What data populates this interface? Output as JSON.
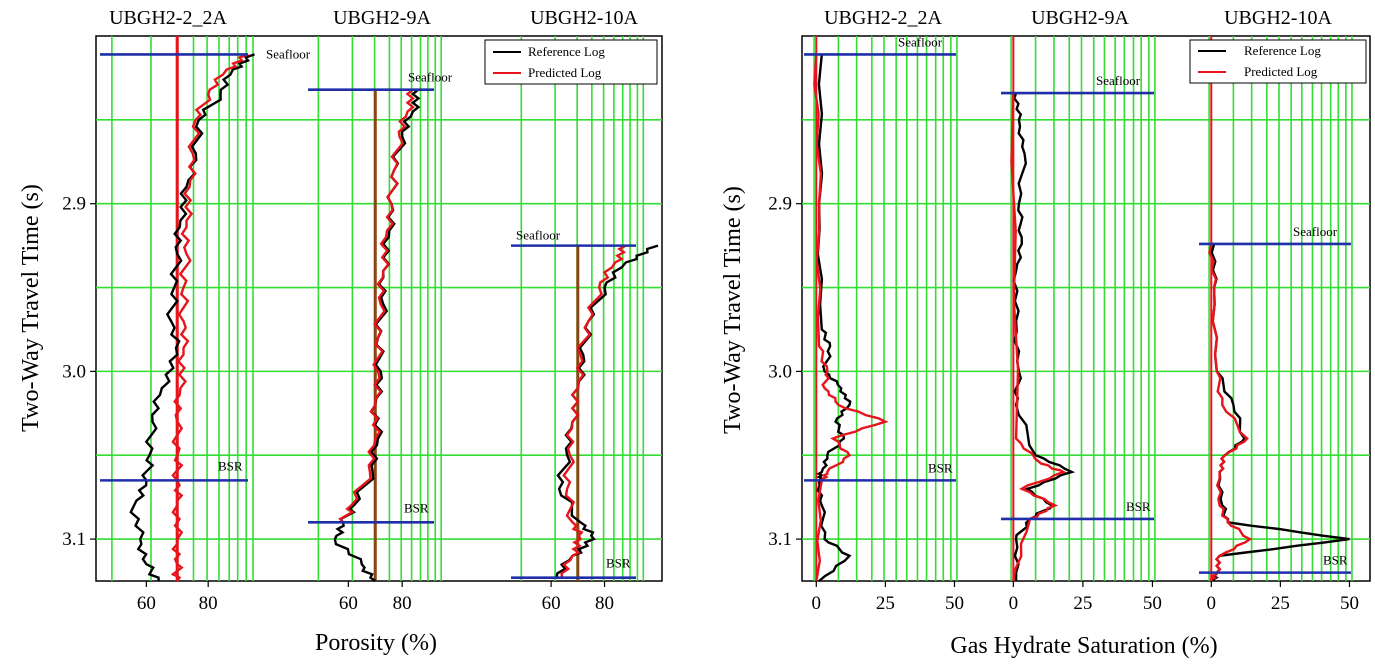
{
  "colors": {
    "grid": "#33dd33",
    "reference": "#000000",
    "predicted": "#e8141c",
    "marker": "#1f2fa8",
    "baseline_porosity": "#8b4513"
  },
  "chart_data": [
    {
      "type": "line",
      "title": "",
      "xlabel": "Porosity (%)",
      "ylabel": "Two-Way Travel Time (s)",
      "y_inverted": true,
      "ylim": [
        2.8,
        3.125
      ],
      "y_ticks": [
        2.9,
        3.0,
        3.1
      ],
      "y_tick_labels": [
        "2.9",
        "3.0",
        "3.1"
      ],
      "grid": true,
      "legend": {
        "placement": "top-right",
        "entries": [
          "Reference Log",
          "Predicted Log"
        ]
      },
      "tracks": [
        {
          "title": "UBGH2-2_2A",
          "xlim": [
            45,
            100
          ],
          "x_ticks": [
            60,
            80
          ],
          "x_tick_labels": [
            "60",
            "80"
          ],
          "baseline": 70,
          "seafloor": {
            "label": "Seafloor",
            "twt": 2.811
          },
          "bsr": {
            "label": "BSR",
            "twt": 3.065
          },
          "series": [
            {
              "name": "Reference Log",
              "twt": [
                2.811,
                2.82,
                2.835,
                2.85,
                2.87,
                2.89,
                2.91,
                2.93,
                2.95,
                2.97,
                2.99,
                3.01,
                3.03,
                3.05,
                3.065,
                3.08,
                3.1,
                3.115,
                3.125
              ],
              "values": [
                95,
                88,
                84,
                77,
                76,
                73,
                71,
                70,
                69,
                68,
                70,
                65,
                62,
                61,
                60,
                56,
                58,
                60,
                64
              ]
            },
            {
              "name": "Predicted Log",
              "twt": [
                2.811,
                2.82,
                2.835,
                2.85,
                2.87,
                2.89,
                2.91,
                2.93,
                2.95,
                2.97,
                2.99,
                3.01,
                3.03,
                3.05,
                3.065,
                3.08,
                3.1,
                3.115,
                3.125
              ],
              "values": [
                93,
                86,
                80,
                76,
                75,
                74,
                73,
                73,
                72,
                72,
                72,
                71,
                70,
                70,
                70,
                70,
                70,
                70,
                70
              ]
            }
          ]
        },
        {
          "title": "UBGH2-9A",
          "xlim": [
            45,
            100
          ],
          "x_ticks": [
            60,
            80
          ],
          "x_tick_labels": [
            "60",
            "80"
          ],
          "baseline": 70,
          "seafloor": {
            "label": "Seafloor",
            "twt": 2.832
          },
          "bsr": {
            "label": "BSR",
            "twt": 3.09
          },
          "series": [
            {
              "name": "Reference Log",
              "twt": [
                2.832,
                2.845,
                2.86,
                2.88,
                2.9,
                2.92,
                2.94,
                2.96,
                2.98,
                3.0,
                3.02,
                3.04,
                3.06,
                3.08,
                3.09,
                3.1,
                3.115,
                3.125
              ],
              "values": [
                86,
                84,
                80,
                77,
                76,
                75,
                73,
                73,
                71,
                72,
                70,
                71,
                69,
                62,
                58,
                55,
                65,
                70
              ]
            },
            {
              "name": "Predicted Log",
              "twt": [
                2.832,
                2.845,
                2.86,
                2.88,
                2.9,
                2.92,
                2.94,
                2.96,
                2.98,
                3.0,
                3.02,
                3.04,
                3.06,
                3.08,
                3.09
              ],
              "values": [
                84,
                82,
                79,
                77,
                76,
                74,
                73,
                72,
                71,
                71,
                70,
                70,
                68,
                61,
                58
              ]
            }
          ]
        },
        {
          "title": "UBGH2-10A",
          "xlim": [
            45,
            100
          ],
          "x_ticks": [
            60,
            80
          ],
          "x_tick_labels": [
            "60",
            "80"
          ],
          "baseline": 70,
          "seafloor": {
            "label": "Seafloor",
            "twt": 2.925
          },
          "bsr": {
            "label": "BSR",
            "twt": 3.123
          },
          "series": [
            {
              "name": "Reference Log",
              "twt": [
                2.925,
                2.935,
                2.95,
                2.97,
                2.99,
                3.01,
                3.03,
                3.05,
                3.07,
                3.09,
                3.1,
                3.11,
                3.123
              ],
              "values": [
                100,
                88,
                80,
                74,
                72,
                70,
                68,
                66,
                63,
                71,
                76,
                68,
                62
              ]
            },
            {
              "name": "Predicted Log",
              "twt": [
                2.925,
                2.935,
                2.95,
                2.97,
                2.99,
                3.01,
                3.03,
                3.05,
                3.07,
                3.09,
                3.1,
                3.11,
                3.123
              ],
              "values": [
                88,
                84,
                78,
                74,
                71,
                70,
                68,
                67,
                66,
                68,
                71,
                68,
                64
              ]
            }
          ]
        }
      ]
    },
    {
      "type": "line",
      "title": "",
      "xlabel": "Gas Hydrate Saturation (%)",
      "ylabel": "Two-Way Travel Time (s)",
      "y_inverted": true,
      "ylim": [
        2.8,
        3.125
      ],
      "y_ticks": [
        2.9,
        3.0,
        3.1
      ],
      "y_tick_labels": [
        "2.9",
        "3.0",
        "3.1"
      ],
      "grid": true,
      "legend": {
        "placement": "top-right",
        "entries": [
          "Reference Log",
          "Predicted Log"
        ]
      },
      "tracks": [
        {
          "title": "UBGH2-2_2A",
          "xlim": [
            -3,
            52
          ],
          "x_ticks": [
            0,
            25,
            50
          ],
          "x_tick_labels": [
            "0",
            "25",
            "50"
          ],
          "baseline": 0,
          "seafloor": {
            "label": "Seafloor",
            "twt": 2.811
          },
          "bsr": {
            "label": "BSR",
            "twt": 3.065
          },
          "series": [
            {
              "name": "Reference Log",
              "twt": [
                2.811,
                2.9,
                2.975,
                2.985,
                3.0,
                3.01,
                3.02,
                3.03,
                3.04,
                3.05,
                3.06,
                3.065,
                3.08,
                3.1,
                3.11,
                3.125
              ],
              "values": [
                2,
                1,
                2,
                5,
                3,
                9,
                12,
                7,
                10,
                4,
                2,
                1,
                2,
                3,
                12,
                1
              ]
            },
            {
              "name": "Predicted Log",
              "twt": [
                2.811,
                2.9,
                2.985,
                3.0,
                3.01,
                3.02,
                3.03,
                3.04,
                3.05,
                3.06,
                3.065,
                3.125
              ],
              "values": [
                0,
                1,
                1,
                4,
                3,
                8,
                25,
                6,
                12,
                4,
                2,
                0
              ]
            }
          ]
        },
        {
          "title": "UBGH2-9A",
          "xlim": [
            -3,
            52
          ],
          "x_ticks": [
            0,
            25,
            50
          ],
          "x_tick_labels": [
            "0",
            "25",
            "50"
          ],
          "baseline": 0,
          "seafloor": {
            "label": "Seafloor",
            "twt": 2.834
          },
          "bsr": {
            "label": "BSR",
            "twt": 3.088
          },
          "series": [
            {
              "name": "Reference Log",
              "twt": [
                2.834,
                2.85,
                2.87,
                2.9,
                2.92,
                2.94,
                2.97,
                3.0,
                3.02,
                3.05,
                3.06,
                3.07,
                3.08,
                3.088,
                3.1,
                3.125
              ],
              "values": [
                1,
                2,
                4,
                2,
                3,
                1,
                1,
                2,
                1,
                8,
                21,
                5,
                14,
                6,
                1,
                1
              ]
            },
            {
              "name": "Predicted Log",
              "twt": [
                2.834,
                3.04,
                3.055,
                3.06,
                3.07,
                3.08,
                3.088,
                3.125
              ],
              "values": [
                0,
                1,
                10,
                18,
                3,
                15,
                6,
                0
              ]
            }
          ]
        },
        {
          "title": "UBGH2-10A",
          "xlim": [
            -3,
            52
          ],
          "x_ticks": [
            0,
            25,
            50
          ],
          "x_tick_labels": [
            "0",
            "25",
            "50"
          ],
          "baseline": 0,
          "seafloor": {
            "label": "Seafloor",
            "twt": 2.924
          },
          "bsr": {
            "label": "BSR",
            "twt": 3.12
          },
          "series": [
            {
              "name": "Reference Log",
              "twt": [
                2.924,
                2.95,
                3.0,
                3.02,
                3.04,
                3.05,
                3.06,
                3.08,
                3.09,
                3.1,
                3.11,
                3.12,
                3.125
              ],
              "values": [
                1,
                1,
                2,
                8,
                12,
                5,
                3,
                4,
                6,
                50,
                3,
                2,
                1
              ]
            },
            {
              "name": "Predicted Log",
              "twt": [
                2.924,
                2.95,
                3.0,
                3.02,
                3.04,
                3.05,
                3.06,
                3.08,
                3.09,
                3.1,
                3.11,
                3.12,
                3.125
              ],
              "values": [
                0,
                1,
                2,
                4,
                13,
                5,
                3,
                3,
                6,
                14,
                3,
                2,
                0
              ]
            }
          ]
        }
      ]
    }
  ]
}
